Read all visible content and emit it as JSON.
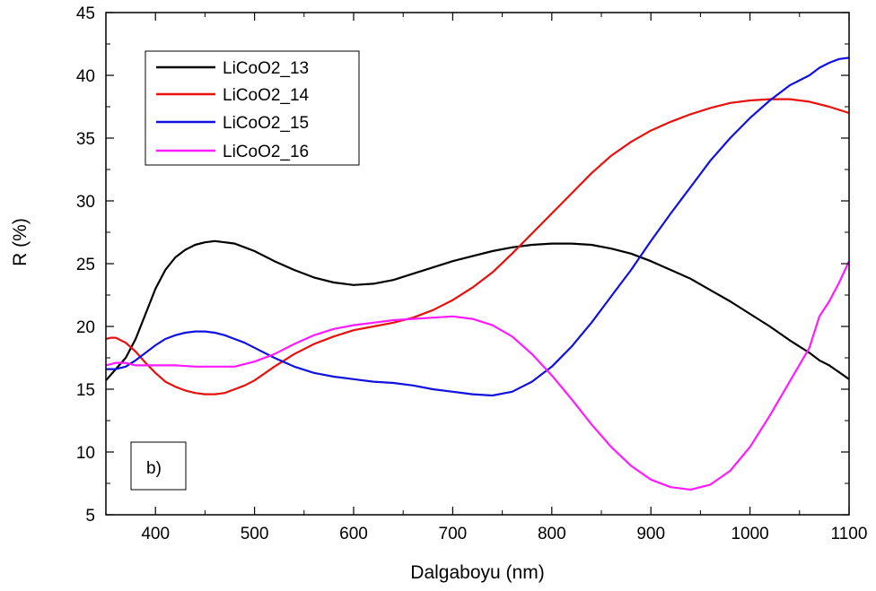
{
  "chart_data": {
    "type": "line",
    "title": "",
    "xlabel": "Dalgaboyu (nm)",
    "ylabel": "R (%)",
    "xlim": [
      350,
      1100
    ],
    "ylim": [
      5,
      45
    ],
    "xticks": [
      400,
      500,
      600,
      700,
      800,
      900,
      1000,
      1100
    ],
    "yticks": [
      5,
      10,
      15,
      20,
      25,
      30,
      35,
      40,
      45
    ],
    "grid": false,
    "legend_position": "top-left",
    "annotation": "b)",
    "series": [
      {
        "name": "LiCoO2_13",
        "color": "#000000",
        "x": [
          350,
          360,
          370,
          380,
          390,
          400,
          410,
          420,
          430,
          440,
          450,
          460,
          470,
          480,
          490,
          500,
          520,
          540,
          560,
          580,
          600,
          620,
          640,
          660,
          680,
          700,
          720,
          740,
          760,
          780,
          800,
          820,
          840,
          860,
          880,
          900,
          920,
          940,
          960,
          980,
          1000,
          1020,
          1040,
          1060,
          1070,
          1080,
          1100
        ],
        "y": [
          15.7,
          16.6,
          17.5,
          19.0,
          21.0,
          23.0,
          24.5,
          25.5,
          26.1,
          26.5,
          26.7,
          26.8,
          26.7,
          26.6,
          26.3,
          26.0,
          25.2,
          24.5,
          23.9,
          23.5,
          23.3,
          23.4,
          23.7,
          24.2,
          24.7,
          25.2,
          25.6,
          26.0,
          26.3,
          26.5,
          26.6,
          26.6,
          26.5,
          26.2,
          25.8,
          25.2,
          24.5,
          23.8,
          22.9,
          22.0,
          21.0,
          20.0,
          18.9,
          17.9,
          17.3,
          16.9,
          15.8
        ]
      },
      {
        "name": "LiCoO2_14",
        "color": "#e8100c",
        "x": [
          350,
          355,
          360,
          370,
          380,
          390,
          400,
          410,
          420,
          430,
          440,
          450,
          460,
          470,
          480,
          490,
          500,
          520,
          540,
          560,
          580,
          600,
          620,
          640,
          660,
          680,
          700,
          720,
          740,
          760,
          780,
          800,
          820,
          840,
          860,
          880,
          900,
          920,
          940,
          960,
          980,
          1000,
          1020,
          1040,
          1060,
          1080,
          1100
        ],
        "y": [
          19.0,
          19.1,
          19.1,
          18.7,
          18.0,
          17.1,
          16.3,
          15.6,
          15.2,
          14.9,
          14.7,
          14.6,
          14.6,
          14.7,
          15.0,
          15.3,
          15.7,
          16.8,
          17.8,
          18.6,
          19.2,
          19.7,
          20.0,
          20.3,
          20.7,
          21.3,
          22.1,
          23.1,
          24.3,
          25.8,
          27.4,
          29.0,
          30.6,
          32.2,
          33.6,
          34.7,
          35.6,
          36.3,
          36.9,
          37.4,
          37.8,
          38.0,
          38.1,
          38.1,
          37.9,
          37.5,
          37.0
        ]
      },
      {
        "name": "LiCoO2_15",
        "color": "#1010e0",
        "x": [
          350,
          360,
          370,
          380,
          390,
          400,
          410,
          420,
          430,
          440,
          450,
          460,
          470,
          480,
          490,
          500,
          520,
          540,
          560,
          580,
          600,
          620,
          640,
          660,
          680,
          700,
          720,
          740,
          760,
          780,
          800,
          820,
          840,
          860,
          880,
          900,
          920,
          940,
          960,
          980,
          1000,
          1020,
          1040,
          1060,
          1070,
          1080,
          1090,
          1100
        ],
        "y": [
          16.6,
          16.6,
          16.8,
          17.3,
          17.9,
          18.5,
          19.0,
          19.3,
          19.5,
          19.6,
          19.6,
          19.5,
          19.3,
          19.0,
          18.7,
          18.3,
          17.5,
          16.8,
          16.3,
          16.0,
          15.8,
          15.6,
          15.5,
          15.3,
          15.0,
          14.8,
          14.6,
          14.5,
          14.8,
          15.6,
          16.8,
          18.4,
          20.3,
          22.4,
          24.5,
          26.8,
          29.0,
          31.1,
          33.2,
          35.0,
          36.6,
          38.0,
          39.2,
          40.0,
          40.6,
          41.0,
          41.3,
          41.4
        ]
      },
      {
        "name": "LiCoO2_16",
        "color": "#ff1aff",
        "x": [
          350,
          360,
          370,
          380,
          400,
          420,
          440,
          460,
          480,
          500,
          520,
          540,
          560,
          580,
          600,
          620,
          640,
          660,
          680,
          700,
          720,
          740,
          760,
          780,
          800,
          820,
          840,
          860,
          880,
          900,
          920,
          940,
          960,
          980,
          1000,
          1020,
          1040,
          1060,
          1070,
          1080,
          1090,
          1100
        ],
        "y": [
          16.9,
          17.1,
          17.1,
          16.9,
          16.9,
          16.9,
          16.8,
          16.8,
          16.8,
          17.2,
          17.8,
          18.6,
          19.3,
          19.8,
          20.1,
          20.3,
          20.5,
          20.6,
          20.7,
          20.8,
          20.6,
          20.1,
          19.2,
          17.8,
          16.1,
          14.2,
          12.2,
          10.4,
          8.9,
          7.8,
          7.2,
          7.0,
          7.4,
          8.5,
          10.4,
          12.9,
          15.6,
          18.3,
          20.8,
          22.0,
          23.5,
          25.2
        ]
      }
    ]
  }
}
